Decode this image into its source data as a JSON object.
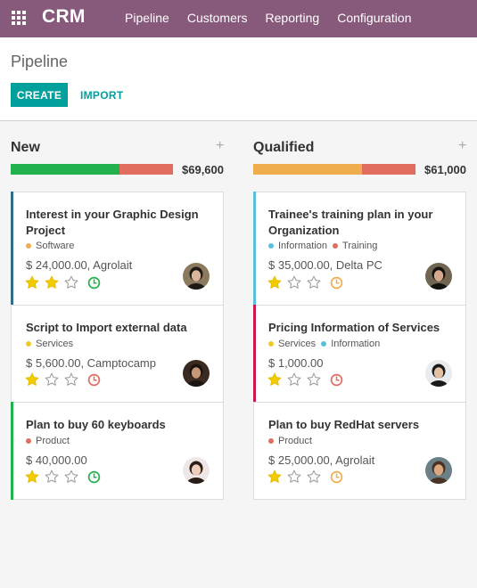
{
  "app": {
    "name": "CRM"
  },
  "nav": [
    "Pipeline",
    "Customers",
    "Reporting",
    "Configuration"
  ],
  "page": {
    "title": "Pipeline",
    "create_label": "CREATE",
    "import_label": "IMPORT"
  },
  "colors": {
    "brand": "#875a7b",
    "accent": "#00a09d",
    "won": "#21b24d",
    "late": "#e06d5e",
    "warning": "#f0ad4e"
  },
  "columns": [
    {
      "title": "New",
      "total": "$69,600",
      "progress": [
        {
          "color": "#21b24d",
          "fraction": 0.67
        },
        {
          "color": "#e06d5e",
          "fraction": 0.33
        }
      ],
      "cards": [
        {
          "name": "Interest in your Graphic Design Project",
          "tags": [
            {
              "label": "Software",
              "color": "#f0ad4e"
            }
          ],
          "amount": "$ 24,000.00, Agrolait",
          "stars": 2,
          "activity": "clock-icon",
          "activity_color": "#21b24d",
          "accent": "#2e6e8a"
        },
        {
          "name": "Script to Import external data",
          "tags": [
            {
              "label": "Services",
              "color": "#f0c929"
            }
          ],
          "amount": "$ 5,600.00, Camptocamp",
          "stars": 1,
          "activity": "clock-icon",
          "activity_color": "#e06d5e",
          "accent": ""
        },
        {
          "name": "Plan to buy 60 keyboards",
          "tags": [
            {
              "label": "Product",
              "color": "#e06d5e"
            }
          ],
          "amount": "$ 40,000.00",
          "stars": 1,
          "activity": "clock-icon",
          "activity_color": "#21b24d",
          "accent": "#21b24d"
        }
      ]
    },
    {
      "title": "Qualified",
      "total": "$61,000",
      "progress": [
        {
          "color": "#f0ad4e",
          "fraction": 0.67
        },
        {
          "color": "#e06d5e",
          "fraction": 0.33
        }
      ],
      "cards": [
        {
          "name": "Trainee's training plan in your Organization",
          "tags": [
            {
              "label": "Information",
              "color": "#5bc0de"
            },
            {
              "label": "Training",
              "color": "#e06d5e"
            }
          ],
          "amount": "$ 35,000.00, Delta PC",
          "stars": 1,
          "activity": "clock-icon",
          "activity_color": "#f0ad4e",
          "accent": "#5bc0de"
        },
        {
          "name": "Pricing Information of Services",
          "tags": [
            {
              "label": "Services",
              "color": "#f0c929"
            },
            {
              "label": "Information",
              "color": "#5bc0de"
            }
          ],
          "amount": "$ 1,000.00",
          "stars": 1,
          "activity": "clock-icon",
          "activity_color": "#e06d5e",
          "accent": "#c9194b"
        },
        {
          "name": "Plan to buy RedHat servers",
          "tags": [
            {
              "label": "Product",
              "color": "#e06d5e"
            }
          ],
          "amount": "$ 25,000.00, Agrolait",
          "stars": 1,
          "activity": "clock-icon",
          "activity_color": "#f0ad4e",
          "accent": ""
        }
      ]
    }
  ]
}
